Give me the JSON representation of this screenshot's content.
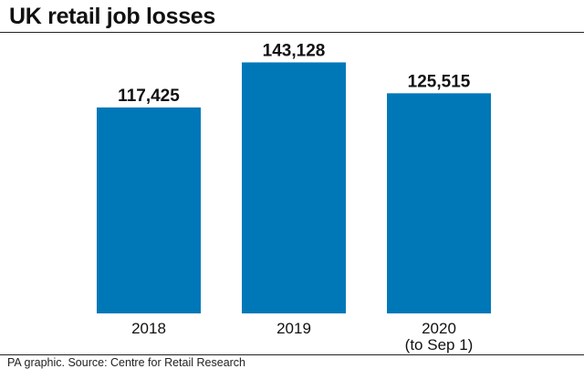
{
  "page": {
    "title": "UK retail job losses",
    "footer": "PA graphic. Source: Centre for Retail Research"
  },
  "chart_data": {
    "type": "bar",
    "title": "UK retail job losses",
    "categories": [
      "2018",
      "2019",
      "2020\n(to Sep 1)"
    ],
    "values": [
      117425,
      143128,
      125515
    ],
    "value_labels": [
      "117,425",
      "143,128",
      "125,515"
    ],
    "ylim": [
      0,
      160000
    ],
    "grid": false,
    "legend": "none",
    "bar_color": "#0078b8"
  }
}
